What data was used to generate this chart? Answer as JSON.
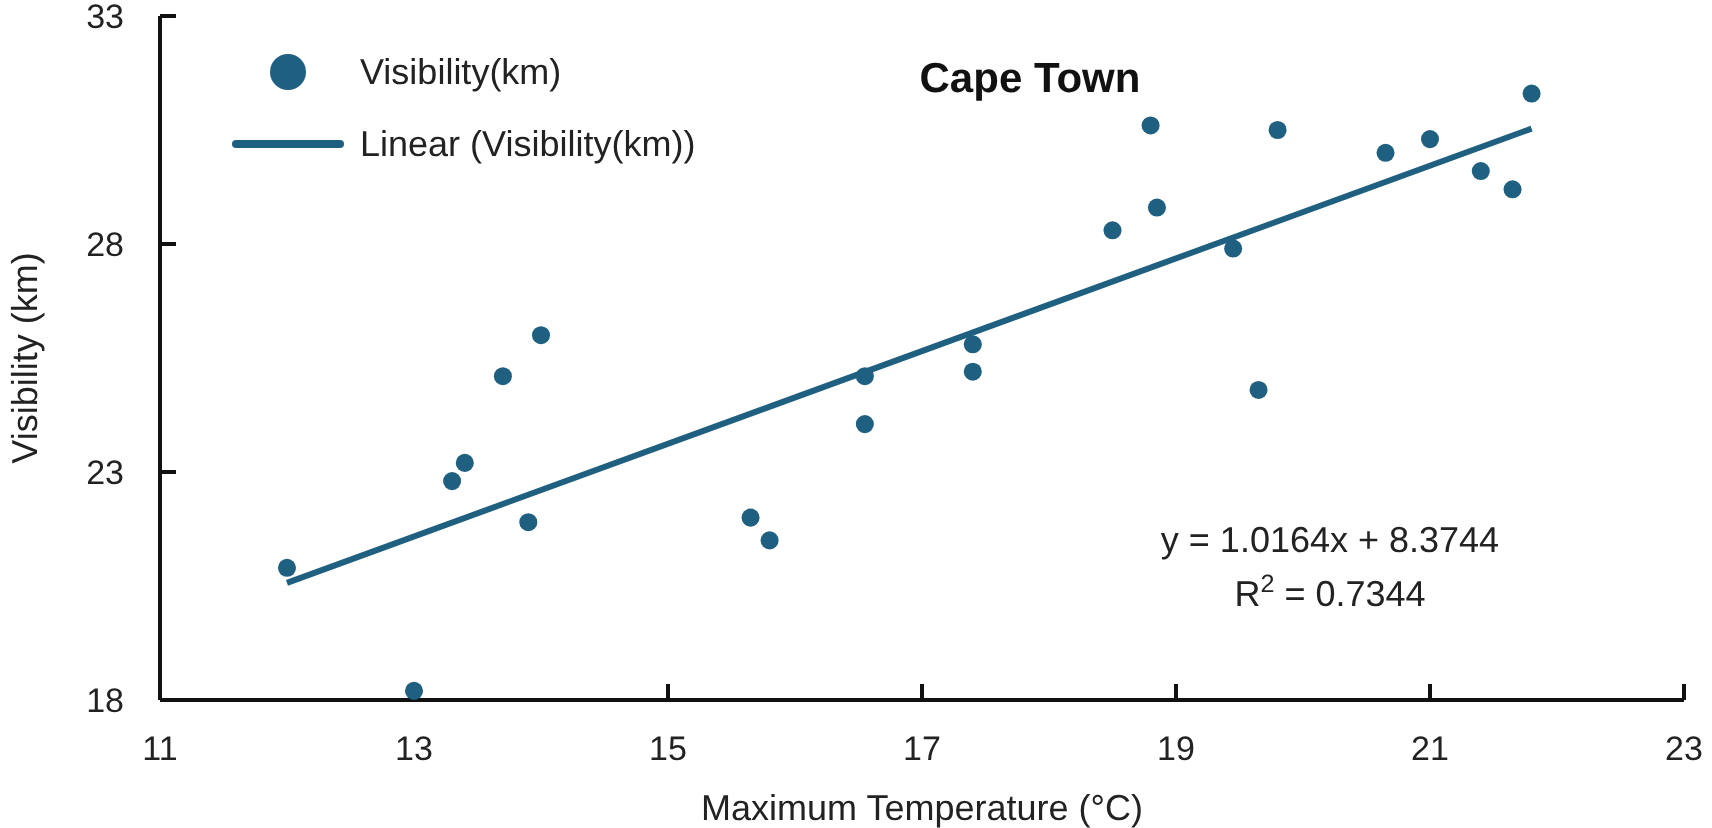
{
  "chart_data": {
    "type": "scatter",
    "title": "Cape Town",
    "xlabel": "Maximum Temperature (°C)",
    "ylabel": "Visibility (km)",
    "xlim": [
      11,
      23
    ],
    "xticks": [
      11,
      13,
      15,
      17,
      19,
      21,
      23
    ],
    "ylim": [
      18,
      33
    ],
    "yticks": [
      18,
      23,
      28,
      33
    ],
    "grid": false,
    "legend": "top left",
    "series": [
      {
        "name": "Visibility(km)",
        "type": "scatter",
        "marker": "circle",
        "color": "#1f5f80",
        "x": [
          12.0,
          13.0,
          13.3,
          13.4,
          13.7,
          14.0,
          13.9,
          15.65,
          15.8,
          16.55,
          16.55,
          17.4,
          17.4,
          18.5,
          18.8,
          18.85,
          19.45,
          19.65,
          19.8,
          20.65,
          21.0,
          21.4,
          21.65,
          21.8
        ],
        "values": [
          20.9,
          18.2,
          22.8,
          23.2,
          25.1,
          26.0,
          21.9,
          22.0,
          21.5,
          25.1,
          24.05,
          25.8,
          25.2,
          28.3,
          30.6,
          28.8,
          27.9,
          24.8,
          30.5,
          30.0,
          30.3,
          29.6,
          29.2,
          31.3
        ]
      },
      {
        "name": "Linear (Visibility(km))",
        "type": "line",
        "color": "#1f5f80",
        "x": [
          12,
          21.8
        ],
        "values": [
          20.57,
          30.53
        ]
      }
    ],
    "annotations": [
      "y = 1.0164x + 8.3744",
      "R$^{2}$ = 0.7344"
    ]
  }
}
